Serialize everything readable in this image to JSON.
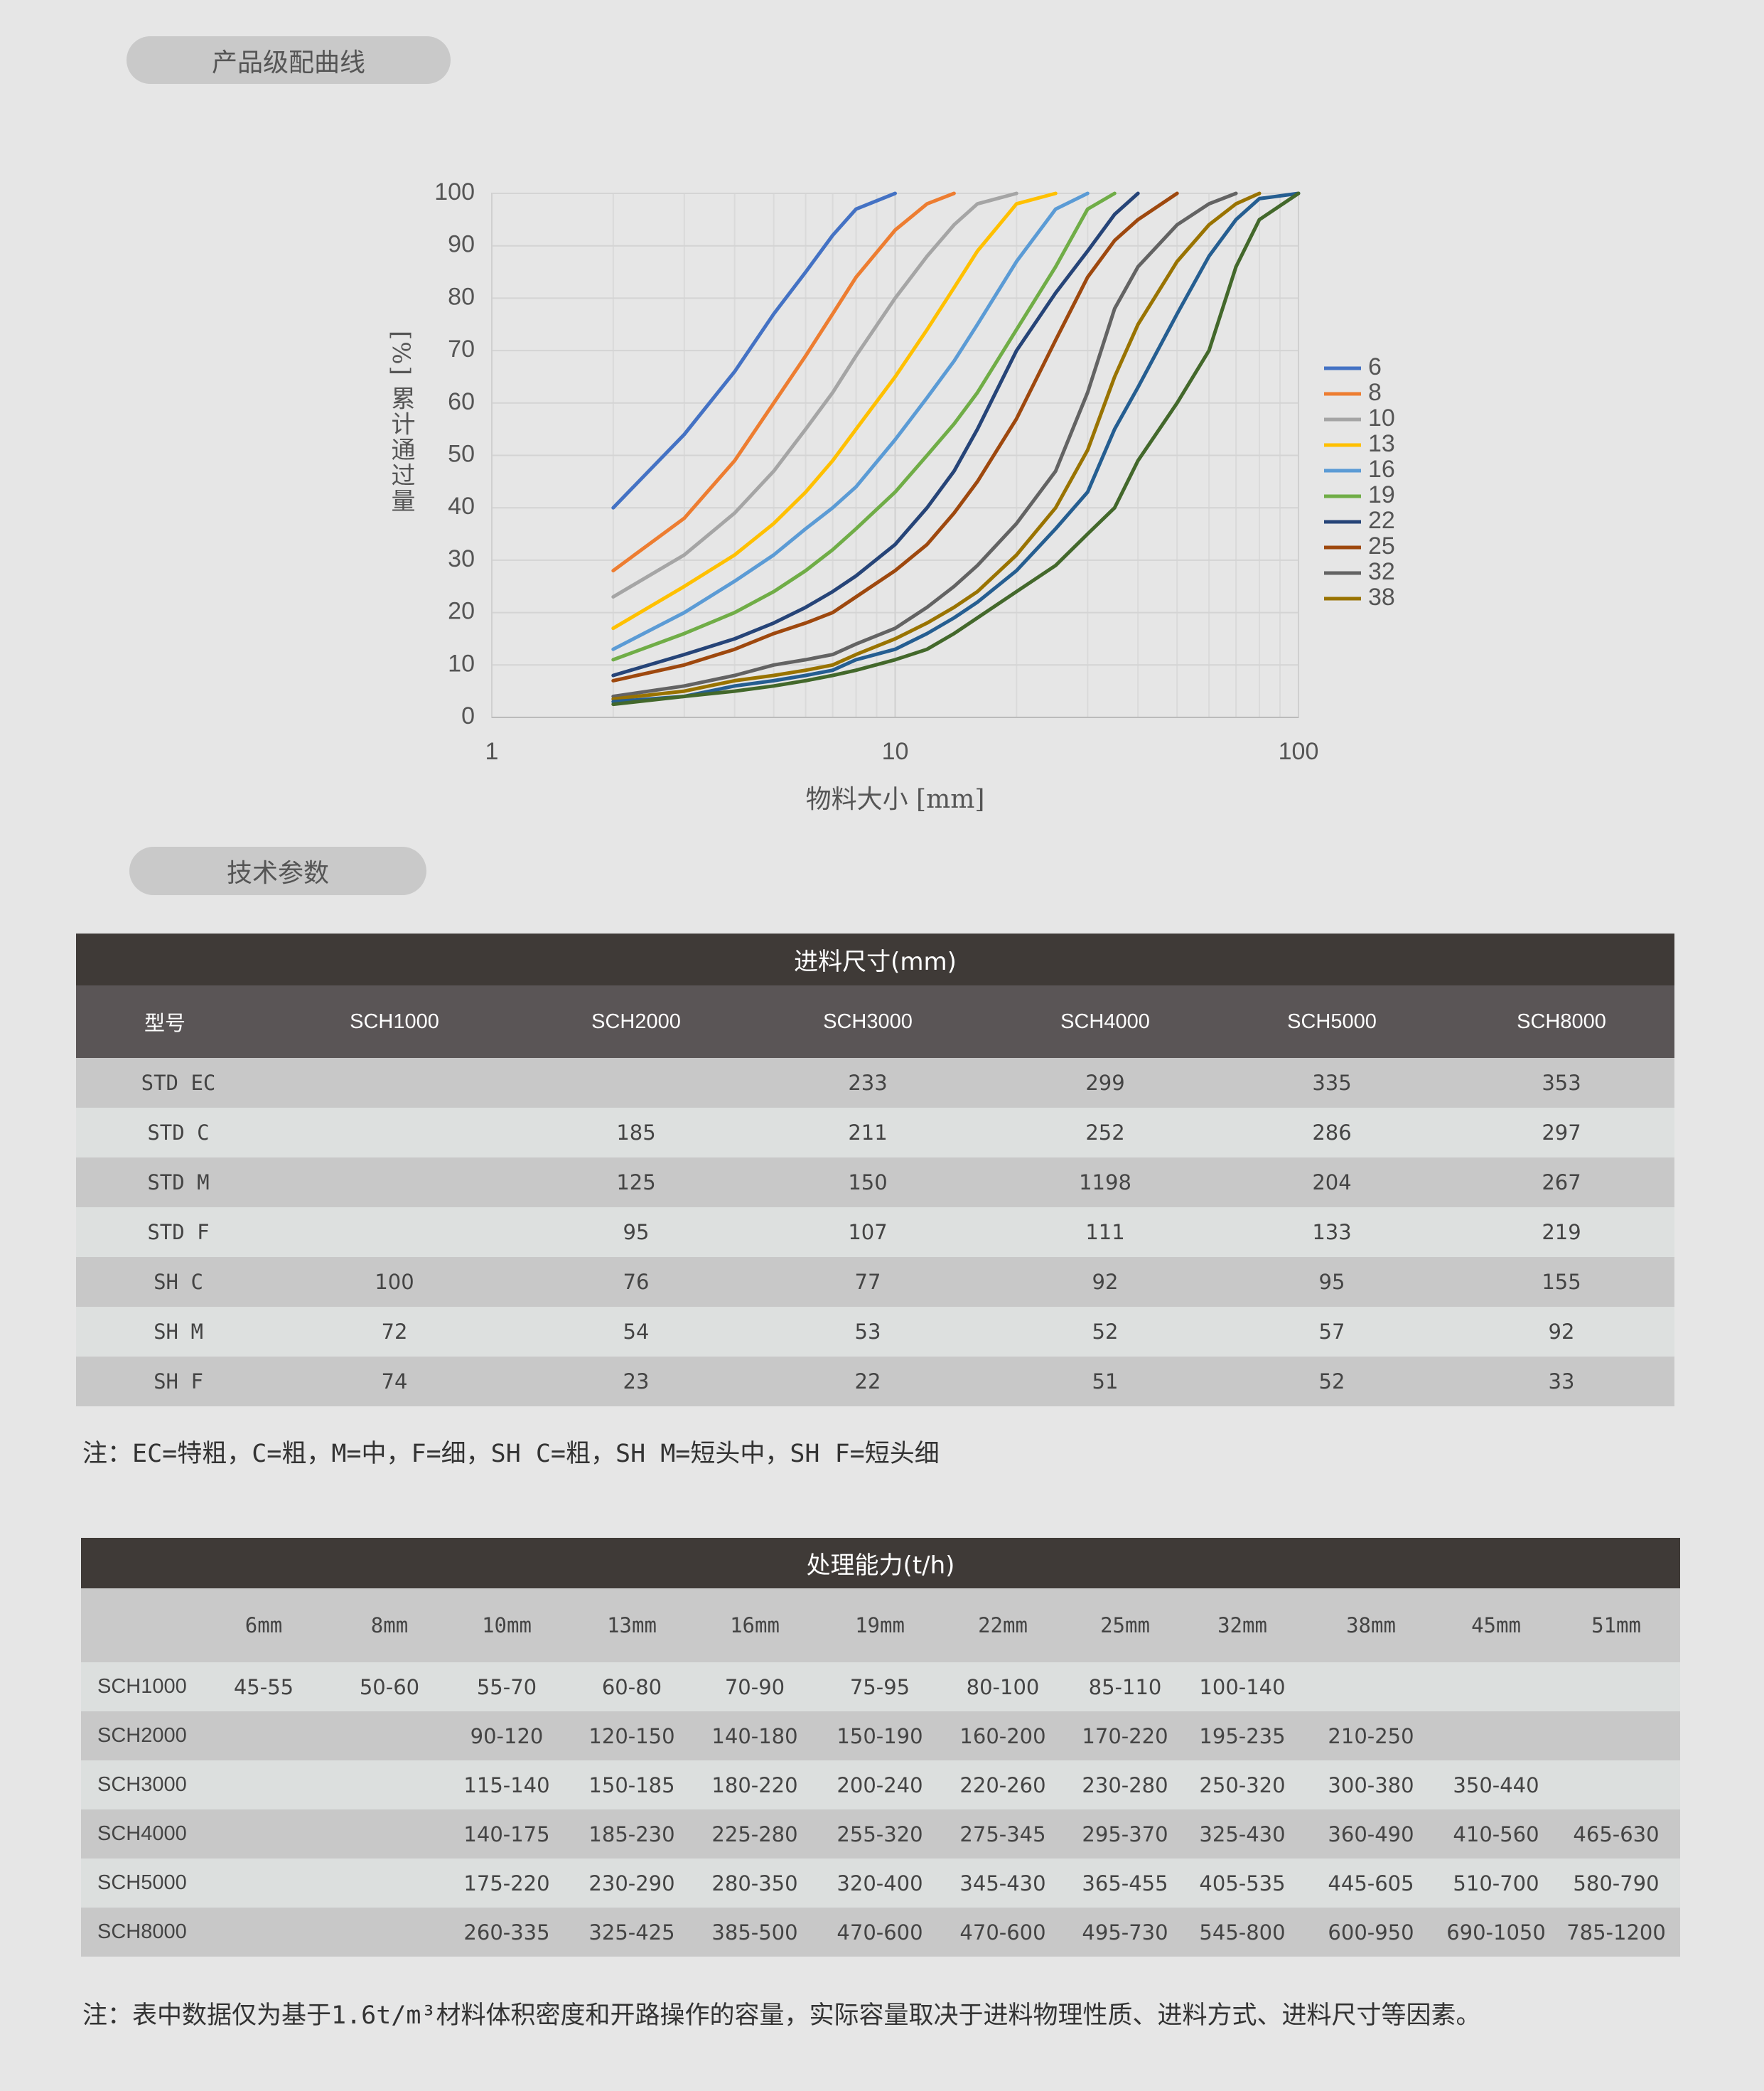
{
  "section_curve": {
    "title": "产品级配曲线"
  },
  "chart_data": {
    "type": "line",
    "ylabel": "[%] 累计通过量",
    "xlabel": "物料大小 [mm]",
    "x": [
      2,
      3,
      4,
      5,
      6,
      7,
      8,
      10,
      12,
      14,
      16,
      20,
      25,
      30,
      35,
      40,
      50,
      60,
      70,
      80,
      100
    ],
    "xlim": [
      1,
      100
    ],
    "xticks": [
      1,
      10,
      100
    ],
    "xlog": true,
    "ylim": [
      0,
      100
    ],
    "yticks": [
      0,
      10,
      20,
      30,
      40,
      50,
      60,
      70,
      80,
      90,
      100
    ],
    "grid": true,
    "legend": "right",
    "series": [
      {
        "name": "6",
        "color": "#4472c4",
        "values": [
          40,
          54,
          66,
          77,
          85,
          92,
          97,
          100,
          null,
          null,
          null,
          null,
          null,
          null,
          null,
          null,
          null,
          null,
          null,
          null,
          null
        ]
      },
      {
        "name": "8",
        "color": "#ed7d31",
        "values": [
          28,
          38,
          49,
          60,
          69,
          77,
          84,
          93,
          98,
          100,
          null,
          null,
          null,
          null,
          null,
          null,
          null,
          null,
          null,
          null,
          null
        ]
      },
      {
        "name": "10",
        "color": "#a5a5a5",
        "values": [
          23,
          31,
          39,
          47,
          55,
          62,
          69,
          80,
          88,
          94,
          98,
          100,
          null,
          null,
          null,
          null,
          null,
          null,
          null,
          null,
          null
        ]
      },
      {
        "name": "13",
        "color": "#ffc000",
        "values": [
          17,
          25,
          31,
          37,
          43,
          49,
          55,
          65,
          74,
          82,
          89,
          98,
          100,
          null,
          null,
          null,
          null,
          null,
          null,
          null,
          null
        ]
      },
      {
        "name": "16",
        "color": "#5b9bd5",
        "values": [
          13,
          20,
          26,
          31,
          36,
          40,
          44,
          53,
          61,
          68,
          75,
          87,
          97,
          100,
          null,
          null,
          null,
          null,
          null,
          null,
          null
        ]
      },
      {
        "name": "19",
        "color": "#70ad47",
        "values": [
          11,
          16,
          20,
          24,
          28,
          32,
          36,
          43,
          50,
          56,
          62,
          74,
          86,
          97,
          100,
          null,
          null,
          null,
          null,
          null,
          null
        ]
      },
      {
        "name": "22",
        "color": "#264478",
        "values": [
          8,
          12,
          15,
          18,
          21,
          24,
          27,
          33,
          40,
          47,
          55,
          70,
          81,
          89,
          96,
          100,
          null,
          null,
          null,
          null,
          null
        ]
      },
      {
        "name": "25",
        "color": "#9e480e",
        "values": [
          7,
          10,
          13,
          16,
          18,
          20,
          23,
          28,
          33,
          39,
          45,
          57,
          72,
          84,
          91,
          95,
          100,
          null,
          null,
          null,
          null
        ]
      },
      {
        "name": "32",
        "color": "#636363",
        "values": [
          4,
          6,
          8,
          10,
          11,
          12,
          14,
          17,
          21,
          25,
          29,
          37,
          47,
          62,
          78,
          86,
          94,
          98,
          100,
          null,
          null
        ]
      },
      {
        "name": "38",
        "color": "#997300",
        "values": [
          3.5,
          5,
          7,
          8,
          9,
          10,
          12,
          15,
          18,
          21,
          24,
          31,
          40,
          51,
          65,
          75,
          87,
          94,
          98,
          100,
          null
        ]
      },
      {
        "color": "#255e91",
        "values": [
          3,
          4,
          6,
          7,
          8,
          9,
          11,
          13,
          16,
          19,
          22,
          28,
          36,
          43,
          55,
          63,
          77,
          88,
          95,
          99,
          100
        ]
      },
      {
        "color": "#43682b",
        "values": [
          2.5,
          4,
          5,
          6,
          7,
          8,
          9,
          11,
          13,
          16,
          19,
          24,
          29,
          35,
          40,
          49,
          60,
          70,
          86,
          95,
          100
        ]
      }
    ]
  },
  "section_params": {
    "title": "技术参数"
  },
  "feed_table": {
    "title": "进料尺寸(mm)",
    "header": [
      "型号",
      "SCH1000",
      "SCH2000",
      "SCH3000",
      "SCH4000",
      "SCH5000",
      "SCH8000"
    ],
    "rows": [
      [
        "STD EC",
        null,
        null,
        233,
        299,
        335,
        353
      ],
      [
        "STD C",
        null,
        185,
        211,
        252,
        286,
        297
      ],
      [
        "STD M",
        null,
        125,
        150,
        1198,
        204,
        267
      ],
      [
        "STD F",
        null,
        95,
        107,
        111,
        133,
        219
      ],
      [
        "SH C",
        100,
        76,
        77,
        92,
        95,
        155
      ],
      [
        "SH M",
        72,
        54,
        53,
        52,
        57,
        92
      ],
      [
        "SH F",
        74,
        23,
        22,
        51,
        52,
        33
      ]
    ],
    "note": "注：EC=特粗，C=粗，M=中，F=细，SH C=粗，SH M=短头中，SH F=短头细"
  },
  "capacity_table": {
    "title": "处理能力(t/h)",
    "header": [
      null,
      "6mm",
      "8mm",
      "10mm",
      "13mm",
      "16mm",
      "19mm",
      "22mm",
      "25mm",
      "32mm",
      "38mm",
      "45mm",
      "51mm"
    ],
    "rows": [
      [
        "SCH1000",
        "45-55",
        "50-60",
        "55-70",
        "60-80",
        "70-90",
        "75-95",
        "80-100",
        "85-110",
        "100-140",
        null,
        null,
        null
      ],
      [
        "SCH2000",
        null,
        null,
        "90-120",
        "120-150",
        "140-180",
        "150-190",
        "160-200",
        "170-220",
        "195-235",
        "210-250",
        null,
        null
      ],
      [
        "SCH3000",
        null,
        null,
        "115-140",
        "150-185",
        "180-220",
        "200-240",
        "220-260",
        "230-280",
        "250-320",
        "300-380",
        "350-440",
        null
      ],
      [
        "SCH4000",
        null,
        null,
        "140-175",
        "185-230",
        "225-280",
        "255-320",
        "275-345",
        "295-370",
        "325-430",
        "360-490",
        "410-560",
        "465-630"
      ],
      [
        "SCH5000",
        null,
        null,
        "175-220",
        "230-290",
        "280-350",
        "320-400",
        "345-430",
        "365-455",
        "405-535",
        "445-605",
        "510-700",
        "580-790"
      ],
      [
        "SCH8000",
        null,
        null,
        "260-335",
        "325-425",
        "385-500",
        "470-600",
        "470-600",
        "495-730",
        "545-800",
        "600-950",
        "690-1050",
        "785-1200"
      ]
    ],
    "note": "注：表中数据仅为基于1.6t/m³材料体积密度和开路操作的容量，实际容量取决于进料物理性质、进料方式、进料尺寸等因素。"
  }
}
